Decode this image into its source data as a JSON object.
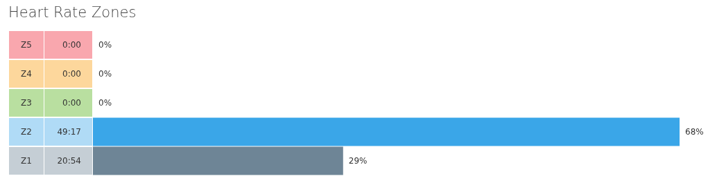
{
  "chart_data": {
    "type": "bar",
    "orientation": "horizontal",
    "title": "Heart Rate Zones",
    "categories": [
      "Z5",
      "Z4",
      "Z3",
      "Z2",
      "Z1"
    ],
    "values": [
      0,
      0,
      0,
      68,
      29
    ],
    "colors": [
      "#f02334",
      "#fa9b07",
      "#50af11",
      "#3aa6e8",
      "#6e8596"
    ],
    "value_labels": [
      "0%",
      "0%",
      "0%",
      "68%",
      "29%"
    ],
    "annotations": [
      "0:00",
      "0:00",
      "0:00",
      "49:17",
      "20:54"
    ]
  }
}
